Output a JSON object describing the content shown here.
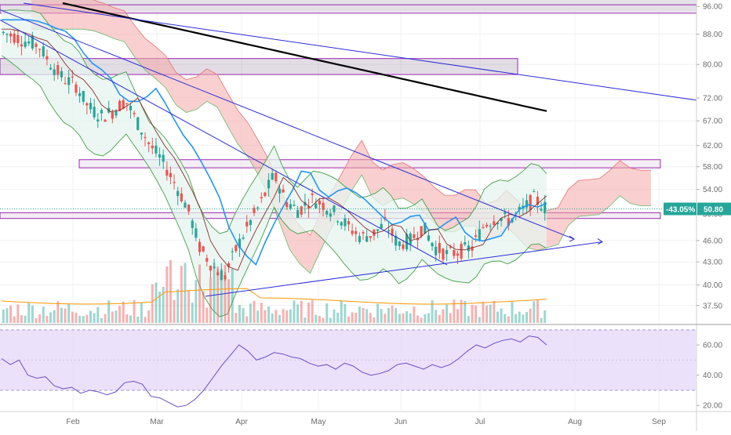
{
  "chart_data": [
    {
      "type": "candlestick",
      "panel": "price",
      "x_ticks": [
        "Feb",
        "Mar",
        "Apr",
        "May",
        "Jun",
        "Jul",
        "Aug",
        "Sep"
      ],
      "y_ticks": [
        "96.00",
        "88.00",
        "80.00",
        "72.00",
        "67.00",
        "62.00",
        "58.00",
        "54.00",
        "50.00",
        "46.00",
        "43.00",
        "40.00",
        "37.50"
      ],
      "last_price_label": "50.80",
      "change_label": "-43.05%",
      "ylim": [
        35.5,
        97
      ],
      "log_scale": true,
      "grid": true,
      "indicators": [
        "Ichimoku Cloud",
        "Bollinger Bands",
        "Moving Average",
        "Volume",
        "Trendlines",
        "Horizontal zones"
      ],
      "colors": {
        "up": "#26a69a",
        "down": "#ef5350",
        "cloud": "#f4a9a8",
        "zone_border": "#9c27b0",
        "trendline": "#2b2bd6",
        "ma_long": "#000000",
        "ma_mid": "#2196f3",
        "bb_fill": "#e6f4ef",
        "badge": "#26a69a"
      },
      "horizontal_zones": [
        {
          "from": 94.0,
          "to": 96.5,
          "start": "Jan",
          "end": "Sep"
        },
        {
          "from": 77.5,
          "to": 81.5,
          "start": "Jan",
          "end": "Jul"
        },
        {
          "from": 57.8,
          "to": 59.3,
          "start": "Feb",
          "end": "Aug"
        },
        {
          "from": 49.3,
          "to": 50.2,
          "start": "Jan",
          "end": "Aug"
        }
      ],
      "price_path": [
        [
          "Jan",
          88.5
        ],
        [
          "Jan",
          87.5
        ],
        [
          "Jan",
          86.0
        ],
        [
          "Jan",
          85.0
        ],
        [
          "Jan",
          80.0
        ],
        [
          "Jan",
          76.5
        ],
        [
          "Feb",
          75.0
        ],
        [
          "Feb",
          70.0
        ],
        [
          "Feb",
          68.0
        ],
        [
          "Feb",
          69.0
        ],
        [
          "Feb",
          71.5
        ],
        [
          "Feb",
          66.5
        ],
        [
          "Mar",
          62.0
        ],
        [
          "Mar",
          59.0
        ],
        [
          "Mar",
          55.0
        ],
        [
          "Mar",
          51.0
        ],
        [
          "Mar",
          45.0
        ],
        [
          "Mar",
          42.5
        ],
        [
          "Mar",
          41.0
        ],
        [
          "Apr",
          45.0
        ],
        [
          "Apr",
          48.5
        ],
        [
          "Apr",
          52.0
        ],
        [
          "Apr",
          56.5
        ],
        [
          "Apr",
          52.0
        ],
        [
          "Apr",
          50.5
        ],
        [
          "May",
          52.5
        ],
        [
          "May",
          51.5
        ],
        [
          "May",
          50.0
        ],
        [
          "May",
          48.0
        ],
        [
          "May",
          46.5
        ],
        [
          "May",
          47.0
        ],
        [
          "Jun",
          48.5
        ],
        [
          "Jun",
          45.5
        ],
        [
          "Jun",
          46.0
        ],
        [
          "Jun",
          48.0
        ],
        [
          "Jun",
          45.0
        ],
        [
          "Jun",
          44.0
        ],
        [
          "Jun",
          44.5
        ],
        [
          "Jul",
          45.0
        ],
        [
          "Jul",
          48.5
        ],
        [
          "Jul",
          49.5
        ],
        [
          "Jul",
          49.0
        ],
        [
          "Jul",
          50.5
        ],
        [
          "Jul",
          52.5
        ],
        [
          "Jul",
          50.8
        ]
      ]
    },
    {
      "type": "line",
      "panel": "rsi",
      "y_ticks": [
        "60.00",
        "40.00",
        "20.00"
      ],
      "ylim": [
        17,
        72
      ],
      "band": [
        30,
        70
      ],
      "colors": {
        "line": "#6a4fc3",
        "band": "#e9defa"
      },
      "values": [
        51,
        47,
        50,
        40,
        38,
        39,
        33,
        31,
        32,
        28,
        30,
        29,
        27,
        29,
        35,
        36,
        34,
        26,
        25,
        22,
        19,
        20,
        24,
        30,
        38,
        46,
        53,
        60,
        56,
        50,
        52,
        55,
        54,
        52,
        51,
        48,
        46,
        47,
        44,
        48,
        46,
        42,
        40,
        41,
        43,
        47,
        48,
        46,
        44,
        47,
        45,
        47,
        51,
        56,
        60,
        58,
        61,
        63,
        64,
        62,
        66,
        65,
        60
      ]
    }
  ]
}
